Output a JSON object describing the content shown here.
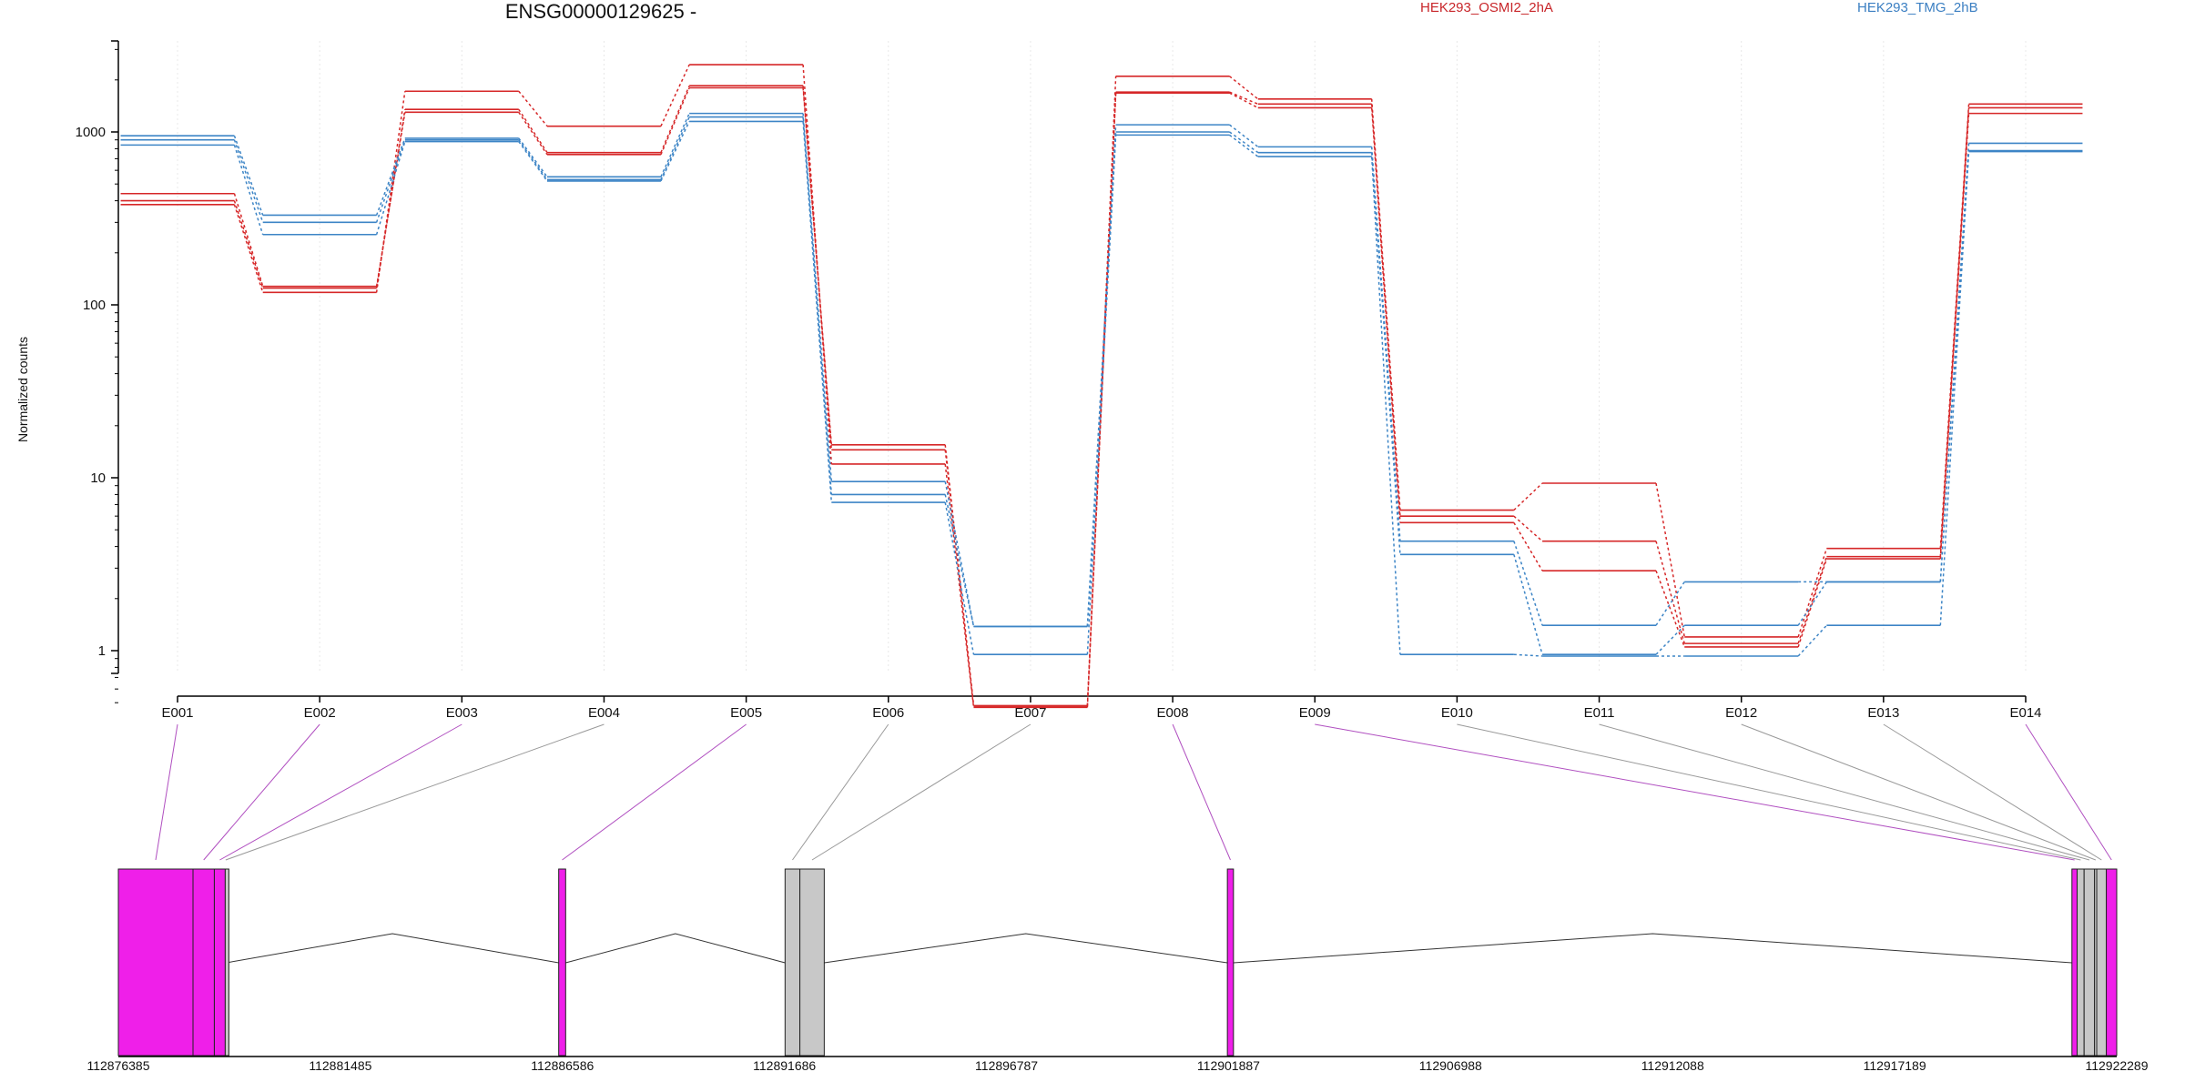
{
  "chart_data": {
    "type": "line",
    "title": "ENSG00000129625 -",
    "ylabel": "Normalized counts",
    "yscale": "log",
    "ylim": [
      0.4,
      3500
    ],
    "ytick_labels": [
      "1",
      "10",
      "100",
      "1000"
    ],
    "ytick_values": [
      1,
      10,
      100,
      1000
    ],
    "categories": [
      "E001",
      "E002",
      "E003",
      "E004",
      "E005",
      "E006",
      "E007",
      "E008",
      "E009",
      "E010",
      "E011",
      "E012",
      "E013",
      "E014"
    ],
    "legend": [
      {
        "name": "HEK293_OSMI2_2hA",
        "color": "#d62728"
      },
      {
        "name": "HEK293_TMG_2hB",
        "color": "#3d85c6"
      }
    ],
    "series": [
      {
        "group": "HEK293_OSMI2_2hA",
        "values": [
          440,
          128,
          1300,
          740,
          1800,
          15.5,
          0.48,
          2100,
          1550,
          6.5,
          9.3,
          1.2,
          3.9,
          1450
        ]
      },
      {
        "group": "HEK293_OSMI2_2hA",
        "values": [
          400,
          125,
          1350,
          760,
          1850,
          14.5,
          0.48,
          1700,
          1450,
          6.0,
          4.3,
          1.1,
          3.5,
          1380
        ]
      },
      {
        "group": "HEK293_OSMI2_2hA",
        "values": [
          380,
          118,
          1720,
          1080,
          2450,
          12.0,
          0.47,
          1680,
          1380,
          5.5,
          2.9,
          1.05,
          3.4,
          1280
        ]
      },
      {
        "group": "HEK293_TMG_2hB",
        "values": [
          950,
          330,
          920,
          550,
          1280,
          9.5,
          1.38,
          1100,
          820,
          4.3,
          1.4,
          2.5,
          2.5,
          860
        ]
      },
      {
        "group": "HEK293_TMG_2hB",
        "values": [
          900,
          300,
          900,
          530,
          1220,
          8.0,
          1.38,
          1000,
          760,
          3.6,
          0.95,
          1.4,
          2.5,
          780
        ]
      },
      {
        "group": "HEK293_TMG_2hB",
        "values": [
          840,
          255,
          880,
          520,
          1150,
          7.2,
          0.95,
          960,
          720,
          0.95,
          0.93,
          0.93,
          1.4,
          770
        ]
      }
    ],
    "exon_status": [
      "sig",
      "sig",
      "sig",
      "ns",
      "sig",
      "ns",
      "ns",
      "sig",
      "sig",
      "ns",
      "ns",
      "ns",
      "ns",
      "sig"
    ],
    "colors": {
      "sig": "#ef1fe9",
      "ns": "#c8c8c8"
    },
    "genomic_axis": {
      "tick_labels": [
        "112876385",
        "112881485",
        "112886586",
        "112891686",
        "112896787",
        "112901887",
        "112906988",
        "112912088",
        "112917189",
        "112922289"
      ],
      "range": [
        112876385,
        112922289
      ]
    },
    "exons": [
      {
        "id": "E001",
        "start": 112876385,
        "end": 112878100
      },
      {
        "id": "E002",
        "start": 112878100,
        "end": 112878590
      },
      {
        "id": "E003",
        "start": 112878590,
        "end": 112878840
      },
      {
        "id": "E004",
        "start": 112878840,
        "end": 112878860
      },
      {
        "id": "E005",
        "start": 112886500,
        "end": 112886660
      },
      {
        "id": "E006",
        "start": 112891700,
        "end": 112892040
      },
      {
        "id": "E007",
        "start": 112892040,
        "end": 112892600
      },
      {
        "id": "E008",
        "start": 112901860,
        "end": 112902000
      },
      {
        "id": "E009",
        "start": 112921260,
        "end": 112921380
      },
      {
        "id": "E010",
        "start": 112921380,
        "end": 112921540
      },
      {
        "id": "E011",
        "start": 112921540,
        "end": 112921780
      },
      {
        "id": "E012",
        "start": 112921780,
        "end": 112921830
      },
      {
        "id": "E013",
        "start": 112921830,
        "end": 112922050
      },
      {
        "id": "E014",
        "start": 112922050,
        "end": 112922289
      }
    ]
  }
}
